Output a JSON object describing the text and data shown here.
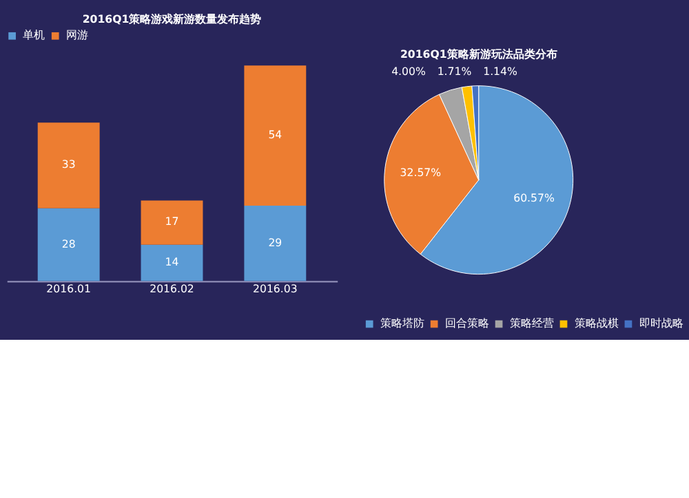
{
  "chart_data": [
    {
      "type": "bar",
      "title": "2016Q1策略游戏新游数量发布趋势",
      "categories": [
        "2016.01",
        "2016.02",
        "2016.03"
      ],
      "stacked": true,
      "data_labels": true,
      "legend": "top",
      "series": [
        {
          "name": "单机",
          "color": "#5b9bd5",
          "values": [
            28,
            14,
            29
          ]
        },
        {
          "name": "网游",
          "color": "#ed7d31",
          "values": [
            33,
            17,
            54
          ]
        }
      ]
    },
    {
      "type": "pie",
      "title": "2016Q1策略新游玩法品类分布",
      "categories": [
        "策略塔防",
        "回合策略",
        "策略经营",
        "策略战棋",
        "即时战略"
      ],
      "values": [
        60.57,
        32.57,
        4.0,
        1.71,
        1.14
      ],
      "colors": [
        "#5b9bd5",
        "#ed7d31",
        "#a5a5a5",
        "#ffc000",
        "#4472c4"
      ],
      "value_labels": [
        "60.57%",
        "32.57%",
        "4.00%",
        "1.71%",
        "1.14%"
      ],
      "legend": "bottom"
    }
  ]
}
